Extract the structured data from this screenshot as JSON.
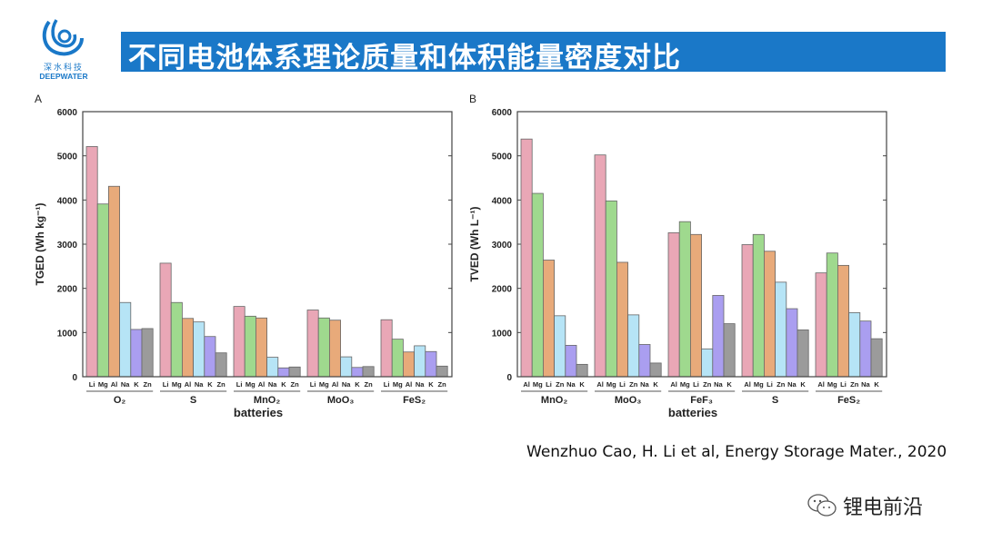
{
  "header": {
    "title": "不同电池体系理论质量和体积能量密度对比"
  },
  "logo": {
    "cn": "深水科技",
    "en": "DEEPWATER"
  },
  "citation": "Wenzhuo Cao, H. Li et al, Energy Storage Mater., 2020",
  "footer": {
    "wechat_account": "锂电前沿",
    "wechat_icon": "wechat-icon"
  },
  "colors": [
    "#e9a7b6",
    "#9fd98e",
    "#e8aa7a",
    "#b6e4f6",
    "#aa9ef0",
    "#9b9b9b"
  ],
  "chart_data": [
    {
      "type": "bar",
      "panel": "A",
      "ylabel": "TGED (Wh kg⁻¹)",
      "xlabel": "batteries",
      "ylim": [
        0,
        6000
      ],
      "yticks": [
        "0",
        "1000",
        "2000",
        "3000",
        "4000",
        "5000",
        "6000"
      ],
      "groups": [
        {
          "name": "O₂",
          "metals": [
            "Li",
            "Mg",
            "Al",
            "Na",
            "K",
            "Zn"
          ],
          "values": [
            5210,
            3910,
            4310,
            1680,
            1070,
            1090
          ]
        },
        {
          "name": "S",
          "metals": [
            "Li",
            "Mg",
            "Al",
            "Na",
            "K",
            "Zn"
          ],
          "values": [
            2570,
            1680,
            1320,
            1240,
            910,
            540
          ]
        },
        {
          "name": "MnO₂",
          "metals": [
            "Li",
            "Mg",
            "Al",
            "Na",
            "K",
            "Zn"
          ],
          "values": [
            1590,
            1370,
            1330,
            440,
            200,
            220
          ]
        },
        {
          "name": "MoO₃",
          "metals": [
            "Li",
            "Mg",
            "Al",
            "Na",
            "K",
            "Zn"
          ],
          "values": [
            1510,
            1330,
            1280,
            450,
            210,
            230
          ]
        },
        {
          "name": "FeS₂",
          "metals": [
            "Li",
            "Mg",
            "Al",
            "Na",
            "K",
            "Zn"
          ],
          "values": [
            1290,
            850,
            560,
            700,
            570,
            240
          ]
        }
      ]
    },
    {
      "type": "bar",
      "panel": "B",
      "ylabel": "TVED (Wh L⁻¹)",
      "xlabel": "batteries",
      "ylim": [
        0,
        6000
      ],
      "yticks": [
        "0",
        "1000",
        "2000",
        "3000",
        "4000",
        "5000",
        "6000"
      ],
      "groups": [
        {
          "name": "MnO₂",
          "metals": [
            "Al",
            "Mg",
            "Li",
            "Zn",
            "Na",
            "K"
          ],
          "values": [
            5380,
            4150,
            2640,
            1380,
            710,
            280
          ]
        },
        {
          "name": "MoO₃",
          "metals": [
            "Al",
            "Mg",
            "Li",
            "Zn",
            "Na",
            "K"
          ],
          "values": [
            5020,
            3980,
            2590,
            1400,
            730,
            310
          ]
        },
        {
          "name": "FeF₃",
          "metals": [
            "Al",
            "Mg",
            "Li",
            "Zn",
            "Na",
            "K"
          ],
          "values": [
            3260,
            3510,
            3220,
            630,
            1840,
            1200
          ]
        },
        {
          "name": "S",
          "metals": [
            "Al",
            "Mg",
            "Li",
            "Zn",
            "Na",
            "K"
          ],
          "values": [
            2990,
            3220,
            2840,
            2140,
            1540,
            1060
          ]
        },
        {
          "name": "FeS₂",
          "metals": [
            "Al",
            "Mg",
            "Li",
            "Zn",
            "Na",
            "K"
          ],
          "values": [
            2350,
            2800,
            2520,
            1450,
            1260,
            860
          ]
        }
      ]
    }
  ]
}
